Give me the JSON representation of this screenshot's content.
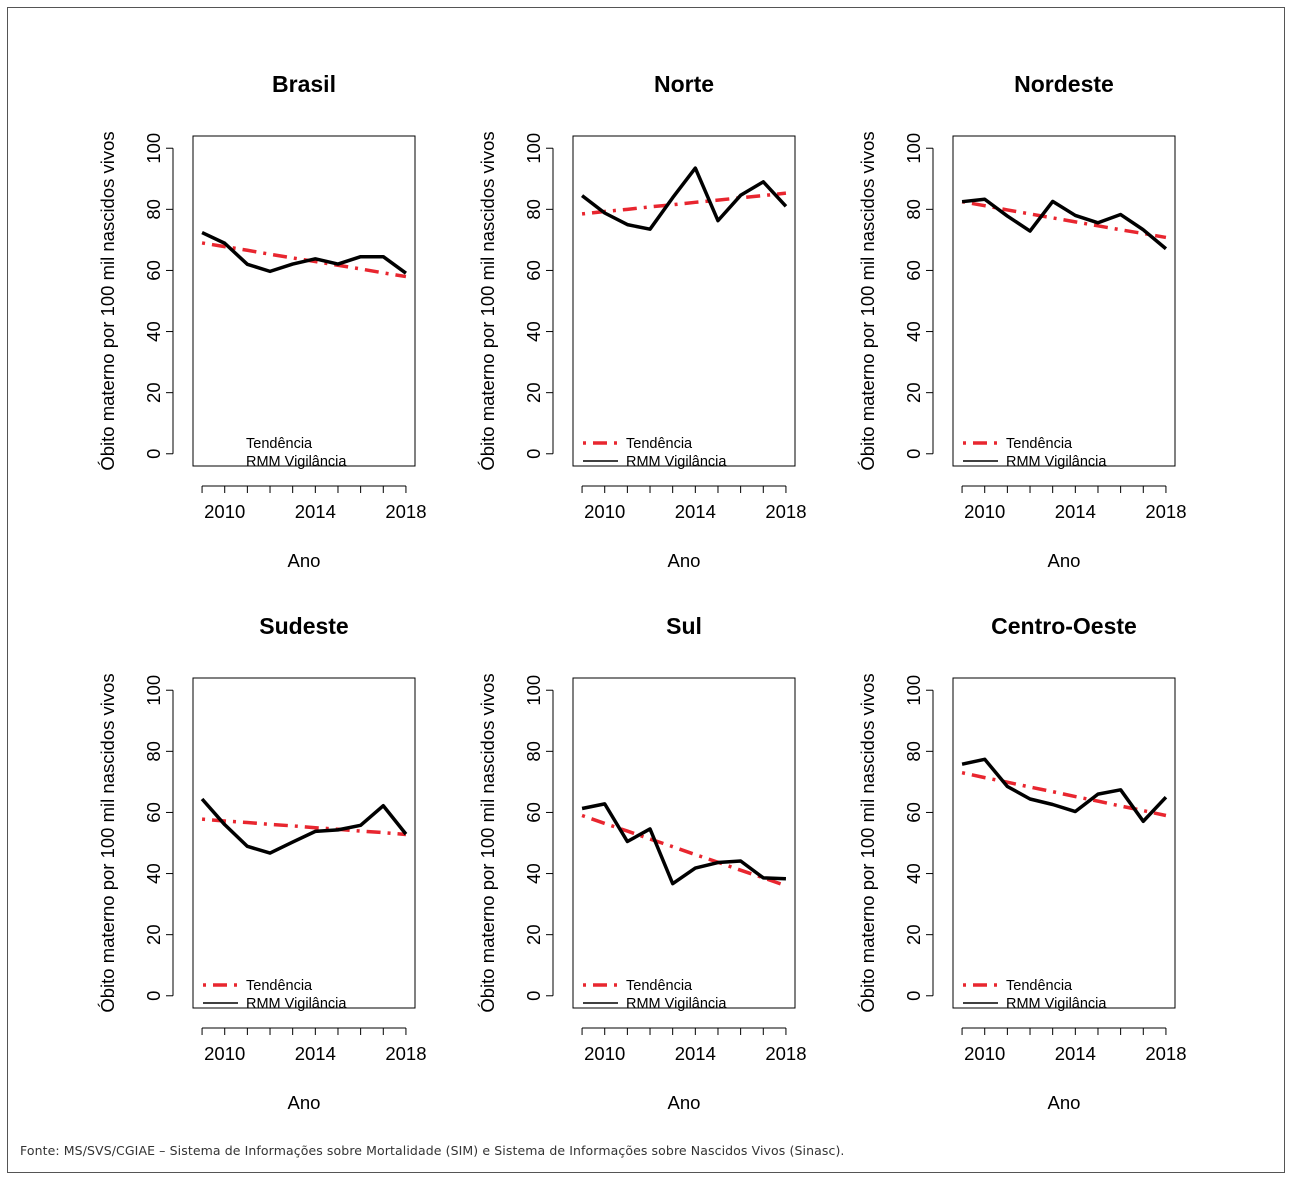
{
  "source_note": "Fonte: MS/SVS/CGIAE – Sistema de Informações sobre Mortalidade (SIM) e Sistema de Informações sobre Nascidos Vivos (Sinasc).",
  "colors": {
    "trend": "#e8262f",
    "observed": "#000000"
  },
  "chart_data": [
    {
      "type": "line",
      "title": "Brasil",
      "xlabel": "Ano",
      "ylabel": "Óbito materno por 100 mil nascidos vivos",
      "xlim": [
        2008.6,
        2018.4
      ],
      "ylim": [
        -4,
        104
      ],
      "x_ticks": [
        2010,
        2014,
        2018
      ],
      "y_ticks": [
        0,
        20,
        40,
        60,
        80,
        100
      ],
      "x": [
        2009,
        2010,
        2011,
        2012,
        2013,
        2014,
        2015,
        2016,
        2017,
        2018
      ],
      "series": [
        {
          "name": "Tendência",
          "values": [
            69.0,
            67.8,
            66.6,
            65.3,
            64.1,
            62.9,
            61.7,
            60.5,
            59.2,
            58.0
          ],
          "style": "dashdot",
          "color": "#e8262f"
        },
        {
          "name": "RMM Vigilância",
          "values": [
            72.4,
            68.9,
            62.0,
            59.7,
            62.1,
            63.8,
            62.1,
            64.5,
            64.5,
            59.1
          ],
          "style": "solid",
          "color": "#000000"
        }
      ],
      "legend_position": "bottom-center",
      "legend_shows_symbols": false
    },
    {
      "type": "line",
      "title": "Norte",
      "xlabel": "Ano",
      "ylabel": "Óbito materno por 100 mil nascidos vivos",
      "xlim": [
        2008.6,
        2018.4
      ],
      "ylim": [
        -4,
        104
      ],
      "x_ticks": [
        2010,
        2014,
        2018
      ],
      "y_ticks": [
        0,
        20,
        40,
        60,
        80,
        100
      ],
      "x": [
        2009,
        2010,
        2011,
        2012,
        2013,
        2014,
        2015,
        2016,
        2017,
        2018
      ],
      "series": [
        {
          "name": "Tendência",
          "values": [
            78.5,
            79.3,
            80.0,
            80.8,
            81.5,
            82.3,
            83.0,
            83.8,
            84.5,
            85.3
          ],
          "style": "dashdot",
          "color": "#e8262f"
        },
        {
          "name": "RMM Vigilância",
          "values": [
            84.5,
            78.8,
            75.0,
            73.5,
            83.8,
            93.5,
            76.3,
            84.6,
            89.0,
            81.0
          ],
          "style": "solid",
          "color": "#000000"
        }
      ],
      "legend_position": "bottom-left",
      "legend_shows_symbols": true
    },
    {
      "type": "line",
      "title": "Nordeste",
      "xlabel": "Ano",
      "ylabel": "Óbito materno por 100 mil nascidos vivos",
      "xlim": [
        2008.6,
        2018.4
      ],
      "ylim": [
        -4,
        104
      ],
      "x_ticks": [
        2010,
        2014,
        2018
      ],
      "y_ticks": [
        0,
        20,
        40,
        60,
        80,
        100
      ],
      "x": [
        2009,
        2010,
        2011,
        2012,
        2013,
        2014,
        2015,
        2016,
        2017,
        2018
      ],
      "series": [
        {
          "name": "Tendência",
          "values": [
            82.5,
            81.2,
            79.8,
            78.5,
            77.2,
            75.9,
            74.6,
            73.3,
            72.1,
            70.8
          ],
          "style": "dashdot",
          "color": "#e8262f"
        },
        {
          "name": "RMM Vigilância",
          "values": [
            82.5,
            83.3,
            77.8,
            72.9,
            82.6,
            78.0,
            75.6,
            78.3,
            73.3,
            67.1
          ],
          "style": "solid",
          "color": "#000000"
        }
      ],
      "legend_position": "bottom-left",
      "legend_shows_symbols": true
    },
    {
      "type": "line",
      "title": "Sudeste",
      "xlabel": "Ano",
      "ylabel": "Óbito materno por 100 mil nascidos vivos",
      "xlim": [
        2008.6,
        2018.4
      ],
      "ylim": [
        -4,
        104
      ],
      "x_ticks": [
        2010,
        2014,
        2018
      ],
      "y_ticks": [
        0,
        20,
        40,
        60,
        80,
        100
      ],
      "x": [
        2009,
        2010,
        2011,
        2012,
        2013,
        2014,
        2015,
        2016,
        2017,
        2018
      ],
      "series": [
        {
          "name": "Tendência",
          "values": [
            57.8,
            57.2,
            56.7,
            56.1,
            55.6,
            55.0,
            54.5,
            53.9,
            53.4,
            52.8
          ],
          "style": "dashdot",
          "color": "#e8262f"
        },
        {
          "name": "RMM Vigilância",
          "values": [
            64.4,
            56.0,
            48.9,
            46.7,
            50.3,
            53.8,
            54.3,
            55.8,
            62.2,
            52.9
          ],
          "style": "solid",
          "color": "#000000"
        }
      ],
      "legend_position": "bottom-left",
      "legend_shows_symbols": true
    },
    {
      "type": "line",
      "title": "Sul",
      "xlabel": "Ano",
      "ylabel": "Óbito materno por 100 mil nascidos vivos",
      "xlim": [
        2008.6,
        2018.4
      ],
      "ylim": [
        -4,
        104
      ],
      "x_ticks": [
        2010,
        2014,
        2018
      ],
      "y_ticks": [
        0,
        20,
        40,
        60,
        80,
        100
      ],
      "x": [
        2009,
        2010,
        2011,
        2012,
        2013,
        2014,
        2015,
        2016,
        2017,
        2018
      ],
      "series": [
        {
          "name": "Tendência",
          "values": [
            59.0,
            56.4,
            53.9,
            51.3,
            48.8,
            46.2,
            43.7,
            41.1,
            38.6,
            36.0
          ],
          "style": "dashdot",
          "color": "#e8262f"
        },
        {
          "name": "RMM Vigilância",
          "values": [
            61.3,
            62.8,
            50.5,
            54.6,
            36.7,
            41.8,
            43.6,
            44.1,
            38.6,
            38.3
          ],
          "style": "solid",
          "color": "#000000"
        }
      ],
      "legend_position": "bottom-left",
      "legend_shows_symbols": true
    },
    {
      "type": "line",
      "title": "Centro-Oeste",
      "xlabel": "Ano",
      "ylabel": "Óbito materno por 100 mil nascidos vivos",
      "xlim": [
        2008.6,
        2018.4
      ],
      "ylim": [
        -4,
        104
      ],
      "x_ticks": [
        2010,
        2014,
        2018
      ],
      "y_ticks": [
        0,
        20,
        40,
        60,
        80,
        100
      ],
      "x": [
        2009,
        2010,
        2011,
        2012,
        2013,
        2014,
        2015,
        2016,
        2017,
        2018
      ],
      "series": [
        {
          "name": "Tendência",
          "values": [
            73.0,
            71.4,
            69.9,
            68.3,
            66.8,
            65.2,
            63.7,
            62.1,
            60.6,
            59.0
          ],
          "style": "dashdot",
          "color": "#e8262f"
        },
        {
          "name": "RMM Vigilância",
          "values": [
            75.8,
            77.4,
            68.5,
            64.4,
            62.6,
            60.3,
            66.0,
            67.4,
            57.1,
            65.0
          ],
          "style": "solid",
          "color": "#000000"
        }
      ],
      "legend_position": "bottom-left",
      "legend_shows_symbols": true
    }
  ]
}
